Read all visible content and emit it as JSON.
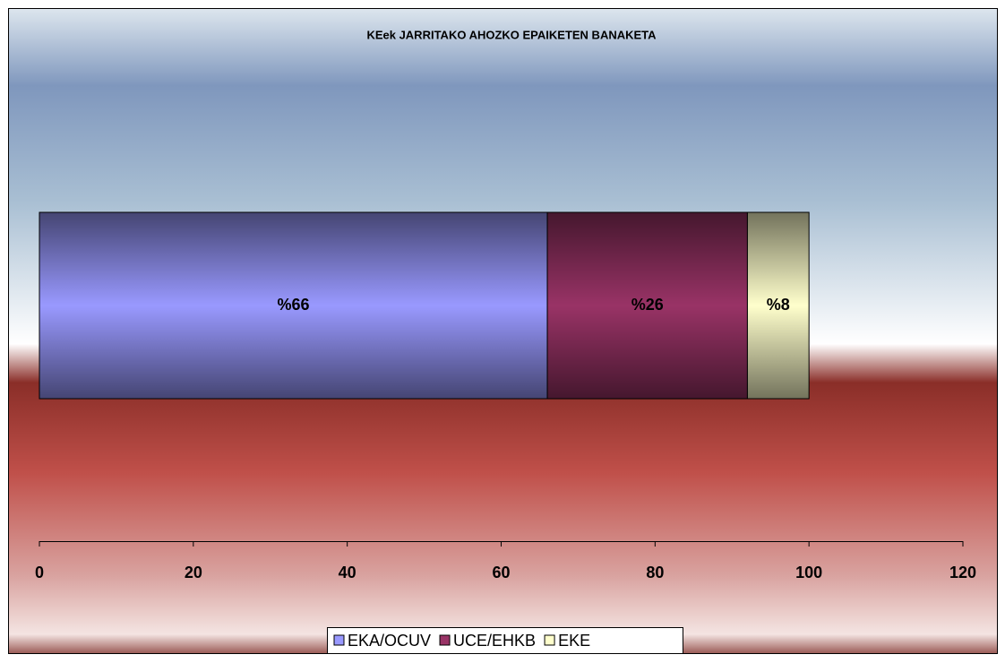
{
  "chart_data": {
    "type": "stacked_bar_horizontal",
    "title": "KEek JARRITAKO AHOZKO EPAIKETEN BANAKETA",
    "categories": [
      null
    ],
    "series": [
      {
        "name": "EKA/OCUV",
        "color": "#9999ff",
        "values": [
          66
        ],
        "value_labels": [
          "%66"
        ]
      },
      {
        "name": "UCE/EHKB",
        "color": "#993366",
        "values": [
          26
        ],
        "value_labels": [
          "%26"
        ]
      },
      {
        "name": "EKE",
        "color": "#ffffcc",
        "values": [
          8
        ],
        "value_labels": [
          "%8"
        ]
      }
    ],
    "xlim": [
      0,
      120
    ],
    "xticks": [
      0,
      20,
      40,
      60,
      80,
      100,
      120
    ],
    "legend": "bottom"
  }
}
